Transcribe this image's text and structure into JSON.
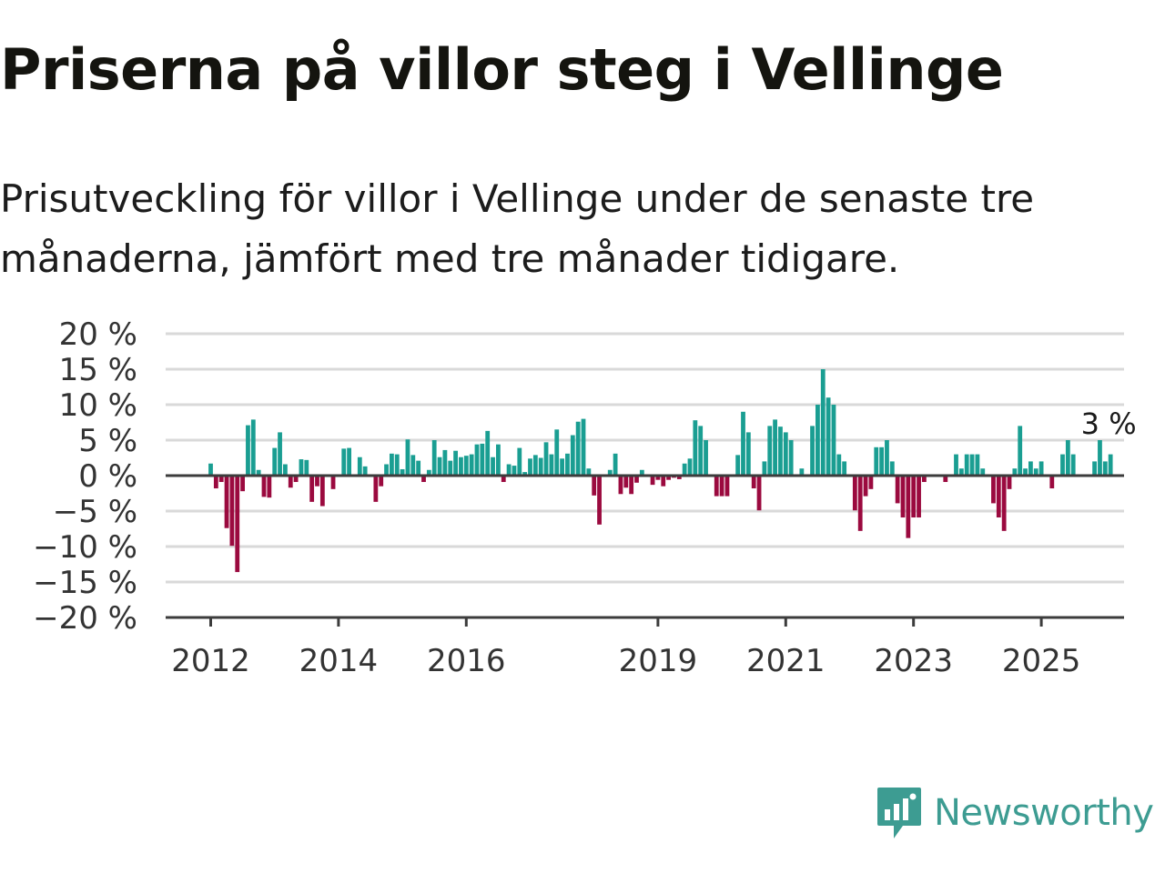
{
  "title": "Priserna på villor steg i Vellinge",
  "subtitle": "Prisutveckling för villor i Vellinge under de senaste tre månaderna, jämfört med tre månader tidigare.",
  "brand": {
    "name": "Newsworthy"
  },
  "colors": {
    "positive": "#1a9e92",
    "negative": "#9b0a3f",
    "grid": "#d9d9d9",
    "axis": "#3c3c3c",
    "brand": "#3d9c92"
  },
  "chart_data": {
    "type": "bar",
    "x_start": "2012-01",
    "x_step": "month",
    "x_tick_labels": [
      "2012",
      "2014",
      "2016",
      "2019",
      "2021",
      "2023",
      "2025"
    ],
    "y_ticks": [
      20,
      15,
      10,
      5,
      0,
      -5,
      -10,
      -15,
      -20
    ],
    "y_tick_labels": [
      "20 %",
      "15 %",
      "10 %",
      "5 %",
      "0 %",
      "−5 %",
      "−10 %",
      "−15 %",
      "−20 %"
    ],
    "ylim": [
      -20,
      20
    ],
    "grid": true,
    "annotation": "3 %",
    "values": [
      1.7,
      -1.8,
      -0.9,
      -7.4,
      -9.9,
      -13.6,
      -2.2,
      7.1,
      7.9,
      0.8,
      -3.0,
      -3.1,
      3.9,
      6.1,
      1.6,
      -1.7,
      -0.9,
      2.3,
      2.2,
      -3.7,
      -1.5,
      -4.3,
      0.1,
      -1.9,
      0.1,
      3.8,
      3.9,
      0.1,
      2.6,
      1.3,
      0.1,
      -3.7,
      -1.5,
      1.6,
      3.1,
      3.0,
      0.9,
      5.1,
      2.9,
      2.1,
      -0.9,
      0.8,
      5.0,
      2.6,
      3.6,
      2.1,
      3.5,
      2.6,
      2.8,
      3.0,
      4.4,
      4.5,
      6.3,
      2.6,
      4.4,
      -0.9,
      1.6,
      1.4,
      3.9,
      0.5,
      2.4,
      2.9,
      2.5,
      4.7,
      3.0,
      6.5,
      2.4,
      3.1,
      5.7,
      7.6,
      8.0,
      1.0,
      -2.8,
      -6.9,
      0.1,
      0.8,
      3.1,
      -2.6,
      -1.7,
      -2.6,
      -1.0,
      0.8,
      0.1,
      -1.3,
      -0.6,
      -1.5,
      -0.6,
      -0.3,
      -0.5,
      1.7,
      2.4,
      7.8,
      7.0,
      5.0,
      0.1,
      -2.9,
      -2.9,
      -2.9,
      0.1,
      2.9,
      9.0,
      6.1,
      -1.8,
      -4.9,
      2.0,
      7.0,
      7.9,
      6.9,
      6.1,
      5.0,
      0.1,
      1.0,
      0.1,
      7.0,
      10.0,
      15.0,
      11.0,
      10.0,
      3.0,
      2.0,
      0.1,
      -4.9,
      -7.8,
      -2.9,
      -1.9,
      4.0,
      4.0,
      5.0,
      2.0,
      -3.9,
      -5.9,
      -8.8,
      -5.9,
      -5.9,
      -0.9,
      0.1,
      0.1,
      0.1,
      -0.9,
      0.1,
      3.0,
      1.0,
      3.0,
      3.0,
      3.0,
      1.0,
      0.1,
      -3.9,
      -5.9,
      -7.8,
      -1.9,
      1.0,
      7.0,
      1.0,
      2.0,
      1.0,
      2.0,
      0.1,
      -1.8,
      0.1,
      3.0,
      5.0,
      3.0,
      0.1,
      0.1,
      0.1,
      2.0,
      5.0,
      2.0,
      3.0
    ]
  }
}
